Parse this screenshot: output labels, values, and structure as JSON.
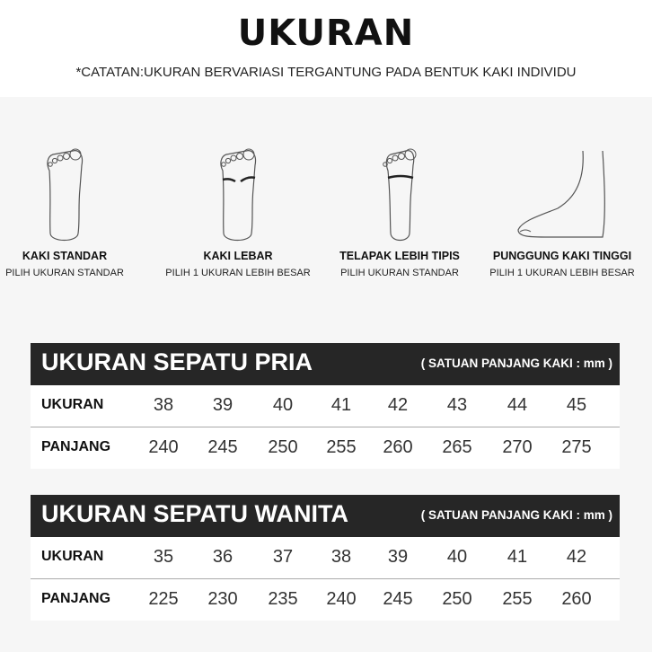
{
  "title": "UKURAN",
  "note": "*CATATAN:UKURAN BERVARIASI TERGANTUNG PADA BENTUK KAKI INDIVIDU",
  "feet": [
    {
      "label": "KAKI STANDAR",
      "sub": "PILIH UKURAN STANDAR",
      "icon": "standard-foot-icon"
    },
    {
      "label": "KAKI LEBAR",
      "sub": "PILIH 1 UKURAN LEBIH BESAR",
      "icon": "wide-foot-icon"
    },
    {
      "label": "TELAPAK LEBIH TIPIS",
      "sub": "PILIH UKURAN STANDAR",
      "icon": "thin-foot-icon"
    },
    {
      "label": "PUNGGUNG KAKI TINGGI",
      "sub": "PILIH 1 UKURAN LEBIH BESAR",
      "icon": "high-instep-foot-icon"
    }
  ],
  "men": {
    "title": "UKURAN SEPATU PRIA",
    "unit": "( SATUAN PANJANG KAKI : mm )",
    "size_label": "UKURAN",
    "length_label": "PANJANG",
    "sizes": [
      "38",
      "39",
      "40",
      "41",
      "42",
      "43",
      "44",
      "45"
    ],
    "lengths": [
      "240",
      "245",
      "250",
      "255",
      "260",
      "265",
      "270",
      "275"
    ]
  },
  "women": {
    "title": "UKURAN SEPATU WANITA",
    "unit": "( SATUAN PANJANG KAKI : mm )",
    "size_label": "UKURAN",
    "length_label": "PANJANG",
    "sizes": [
      "35",
      "36",
      "37",
      "38",
      "39",
      "40",
      "41",
      "42"
    ],
    "lengths": [
      "225",
      "230",
      "235",
      "240",
      "245",
      "250",
      "255",
      "260"
    ]
  }
}
